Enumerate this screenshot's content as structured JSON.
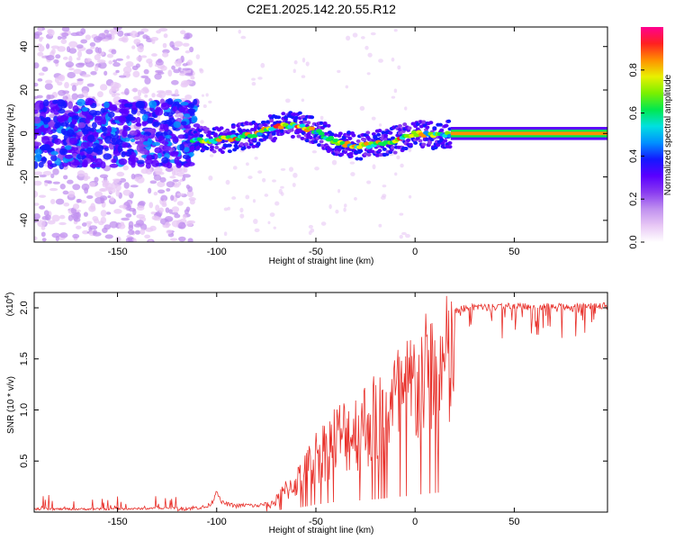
{
  "title": "C2E1.2025.142.20.55.R12",
  "colorbar": {
    "label": "Normalized spectral amplitude",
    "ticks": [
      "0.0",
      "0.2",
      "0.4",
      "0.6",
      "0.8"
    ],
    "tick_values": [
      0.0,
      0.2,
      0.4,
      0.6,
      0.8
    ],
    "range": [
      0,
      1
    ],
    "colors": [
      "#ffffff",
      "#e8c8f5",
      "#c090ef",
      "#8a3cf0",
      "#5a00ff",
      "#1418ff",
      "#0090ff",
      "#00e0e0",
      "#00e850",
      "#7af000",
      "#e8f000",
      "#ff9000",
      "#ff2020",
      "#ff0090"
    ]
  },
  "chart_data": [
    {
      "type": "heatmap",
      "xlabel": "Height of straight line (km)",
      "ylabel": "Frequency (Hz)",
      "xlim": [
        -192,
        97
      ],
      "ylim": [
        -50,
        49
      ],
      "xticks": [
        -150,
        -100,
        -50,
        0,
        50
      ],
      "xtick_labels": [
        "-150",
        "-100",
        "-50",
        "0",
        "50"
      ],
      "yticks": [
        -40,
        -20,
        0,
        20,
        40
      ],
      "ytick_labels": [
        "-40",
        "-20",
        "0",
        "20",
        "40"
      ],
      "ridge": {
        "x": [
          -110,
          -100,
          -90,
          -80,
          -70,
          -60,
          -50,
          -40,
          -30,
          -20,
          -10,
          0,
          10,
          20,
          40,
          60,
          80,
          97
        ],
        "y": [
          -3,
          -3,
          -2,
          0,
          3,
          4,
          1,
          -4,
          -6,
          -5,
          -3,
          0,
          -1,
          0,
          0,
          0,
          0,
          0
        ]
      },
      "zones": [
        {
          "x": [
            -192,
            -112
          ],
          "description_amplitude": 0.3
        },
        {
          "x": [
            -112,
            18
          ],
          "description_amplitude": 0.55
        },
        {
          "x": [
            18,
            97
          ],
          "description_amplitude": 0.85
        }
      ]
    },
    {
      "type": "line",
      "xlabel": "Height of straight line (km)",
      "ylabel": "SNR (10 * v/v)",
      "multiplier_label": "(x10",
      "multiplier_exp": "4",
      "multiplier_close": ")",
      "xlim": [
        -192,
        97
      ],
      "ylim": [
        0,
        2.15
      ],
      "xticks": [
        -150,
        -100,
        -50,
        0,
        50
      ],
      "xtick_labels": [
        "-150",
        "-100",
        "-50",
        "0",
        "50"
      ],
      "yticks": [
        0.5,
        1.0,
        1.5,
        2.0
      ],
      "ytick_labels": [
        "0.5",
        "1.0",
        "1.5",
        "2.0"
      ],
      "series": [
        {
          "color": "#e8302a",
          "x": [
            -192,
            -150,
            -120,
            -105,
            -102,
            -100,
            -98,
            -95,
            -90,
            -85,
            -80,
            -75,
            -70,
            -65,
            -60,
            -55,
            -50,
            -45,
            -40,
            -35,
            -30,
            -25,
            -20,
            -15,
            -10,
            -5,
            0,
            5,
            10,
            15,
            20,
            25,
            30,
            40,
            50,
            60,
            70,
            80,
            90,
            97
          ],
          "y": [
            0.02,
            0.02,
            0.03,
            0.05,
            0.1,
            0.22,
            0.1,
            0.08,
            0.06,
            0.07,
            0.06,
            0.08,
            0.15,
            0.3,
            0.4,
            0.55,
            0.75,
            0.85,
            1.0,
            1.05,
            1.1,
            1.2,
            1.25,
            1.35,
            1.5,
            1.55,
            1.7,
            1.78,
            1.88,
            1.95,
            2.0,
            2.03,
            2.04,
            2.04,
            2.05,
            2.05,
            2.05,
            2.04,
            2.05,
            2.05
          ]
        }
      ]
    }
  ]
}
